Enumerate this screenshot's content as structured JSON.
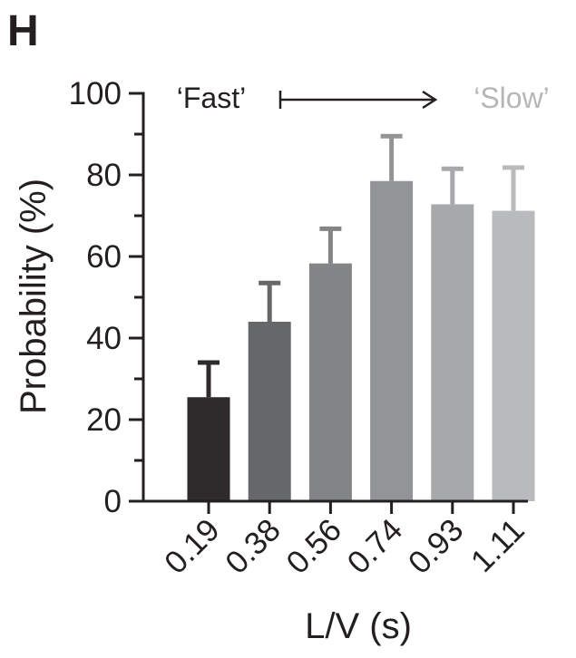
{
  "panel_label": "H",
  "chart_data": {
    "type": "bar",
    "title": "",
    "xlabel": "L/V (s)",
    "ylabel": "Probability (%)",
    "ylim": [
      0,
      100
    ],
    "yticks": [
      "0",
      "20",
      "40",
      "60",
      "80",
      "100"
    ],
    "categories": [
      "0.19",
      "0.38",
      "0.56",
      "0.74",
      "0.93",
      "1.11"
    ],
    "values": [
      25.5,
      44,
      58.3,
      78.5,
      72.8,
      71.2
    ],
    "error_upper": [
      34,
      53.5,
      66.8,
      89.5,
      81.5,
      81.8
    ],
    "bar_colors": [
      "#2f2a2b",
      "#666769",
      "#838485",
      "#939495",
      "#a7a8aa",
      "#b9babb"
    ],
    "grid": false,
    "legend": "none",
    "annotations": {
      "fast_label": "‘Fast’",
      "slow_label": "‘Slow’",
      "fast_color": "#231f20",
      "slow_color": "#b5b6b8"
    }
  }
}
